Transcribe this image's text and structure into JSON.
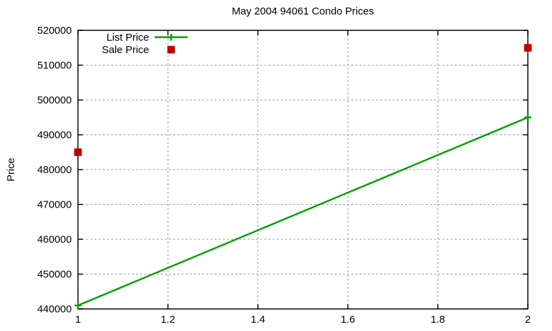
{
  "page": {
    "background": "#ffffff"
  },
  "chart_data": {
    "type": "line",
    "title": "May 2004 94061 Condo Prices",
    "xlabel": "",
    "ylabel": "Price",
    "xlim": [
      1,
      2
    ],
    "ylim": [
      440000,
      520000
    ],
    "x_ticks": [
      1,
      1.2,
      1.4,
      1.6,
      1.8,
      2
    ],
    "x_tick_labels": [
      "1",
      "1.2",
      "1.4",
      "1.6",
      "1.8",
      "2"
    ],
    "y_ticks": [
      440000,
      450000,
      460000,
      470000,
      480000,
      490000,
      500000,
      510000,
      520000
    ],
    "y_tick_labels": [
      "440000",
      "450000",
      "460000",
      "470000",
      "480000",
      "490000",
      "500000",
      "510000",
      "520000"
    ],
    "grid": true,
    "grid_color": "#9a9a9a",
    "axis_color": "#000000",
    "text_color": "#000000",
    "legend_position": "top-left-inside",
    "series": [
      {
        "name": "List Price",
        "color": "#00a000",
        "line": true,
        "marker": "plus",
        "x": [
          1,
          2
        ],
        "y": [
          441000,
          495000
        ]
      },
      {
        "name": "Sale Price",
        "color": "#c00000",
        "line": false,
        "marker": "square",
        "x": [
          1,
          2
        ],
        "y": [
          485000,
          515000
        ]
      }
    ]
  }
}
